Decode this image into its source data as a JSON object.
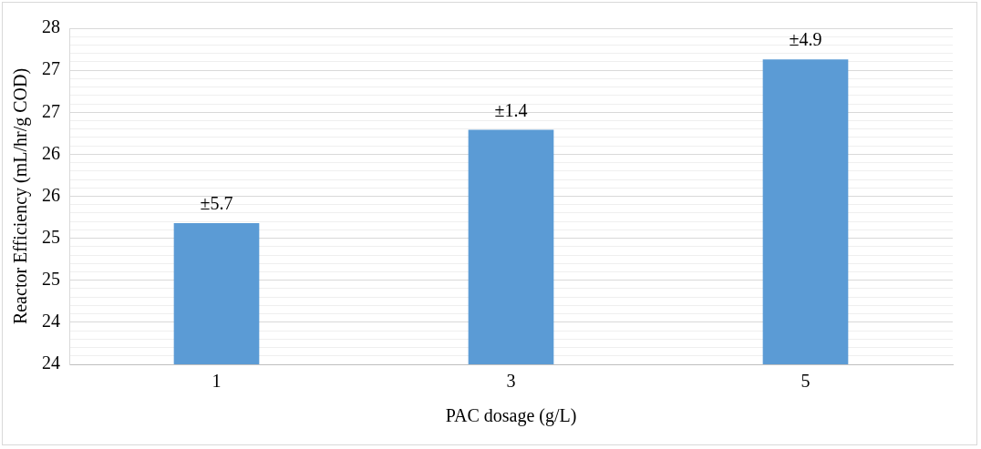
{
  "chart_data": {
    "type": "bar",
    "categories": [
      "1",
      "3",
      "5"
    ],
    "values": [
      25.18,
      26.29,
      27.13
    ],
    "color": "#5b9bd5",
    "xlabel": "PAC dosage (g/L)",
    "ylabel": "Reactor Efficiency (mL/hr/g COD)",
    "ylim": [
      23.5,
      27.5
    ],
    "yticks": [
      {
        "value": 23.5,
        "label": "24"
      },
      {
        "value": 23.6,
        "label": null
      },
      {
        "value": 23.7,
        "label": null
      },
      {
        "value": 23.8,
        "label": null
      },
      {
        "value": 23.9,
        "label": null
      },
      {
        "value": 24,
        "label": "24"
      },
      {
        "value": 24.1,
        "label": null
      },
      {
        "value": 24.2,
        "label": null
      },
      {
        "value": 24.3,
        "label": null
      },
      {
        "value": 24.4,
        "label": null
      },
      {
        "value": 24.5,
        "label": "25"
      },
      {
        "value": 24.6,
        "label": null
      },
      {
        "value": 24.7,
        "label": null
      },
      {
        "value": 24.8,
        "label": null
      },
      {
        "value": 24.9,
        "label": null
      },
      {
        "value": 25,
        "label": "25"
      },
      {
        "value": 25.1,
        "label": null
      },
      {
        "value": 25.2,
        "label": null
      },
      {
        "value": 25.3,
        "label": null
      },
      {
        "value": 25.4,
        "label": null
      },
      {
        "value": 25.5,
        "label": "26"
      },
      {
        "value": 25.6,
        "label": null
      },
      {
        "value": 25.7,
        "label": null
      },
      {
        "value": 25.8,
        "label": null
      },
      {
        "value": 25.9,
        "label": null
      },
      {
        "value": 26,
        "label": "26"
      },
      {
        "value": 26.1,
        "label": null
      },
      {
        "value": 26.2,
        "label": null
      },
      {
        "value": 26.3,
        "label": null
      },
      {
        "value": 26.4,
        "label": null
      },
      {
        "value": 26.5,
        "label": "27"
      },
      {
        "value": 26.6,
        "label": null
      },
      {
        "value": 26.7,
        "label": null
      },
      {
        "value": 26.8,
        "label": null
      },
      {
        "value": 26.9,
        "label": null
      },
      {
        "value": 27,
        "label": "27"
      },
      {
        "value": 27.1,
        "label": null
      },
      {
        "value": 27.2,
        "label": null
      },
      {
        "value": 27.3,
        "label": null
      },
      {
        "value": 27.4,
        "label": null
      },
      {
        "value": 27.5,
        "label": "28"
      }
    ],
    "grid": "y",
    "annotations": [
      {
        "text": "±5.7",
        "x": "1",
        "y": 25.18
      },
      {
        "text": "±1.4",
        "x": "3",
        "y": 26.29
      },
      {
        "text": "±4.9",
        "x": "5",
        "y": 27.13
      }
    ]
  }
}
